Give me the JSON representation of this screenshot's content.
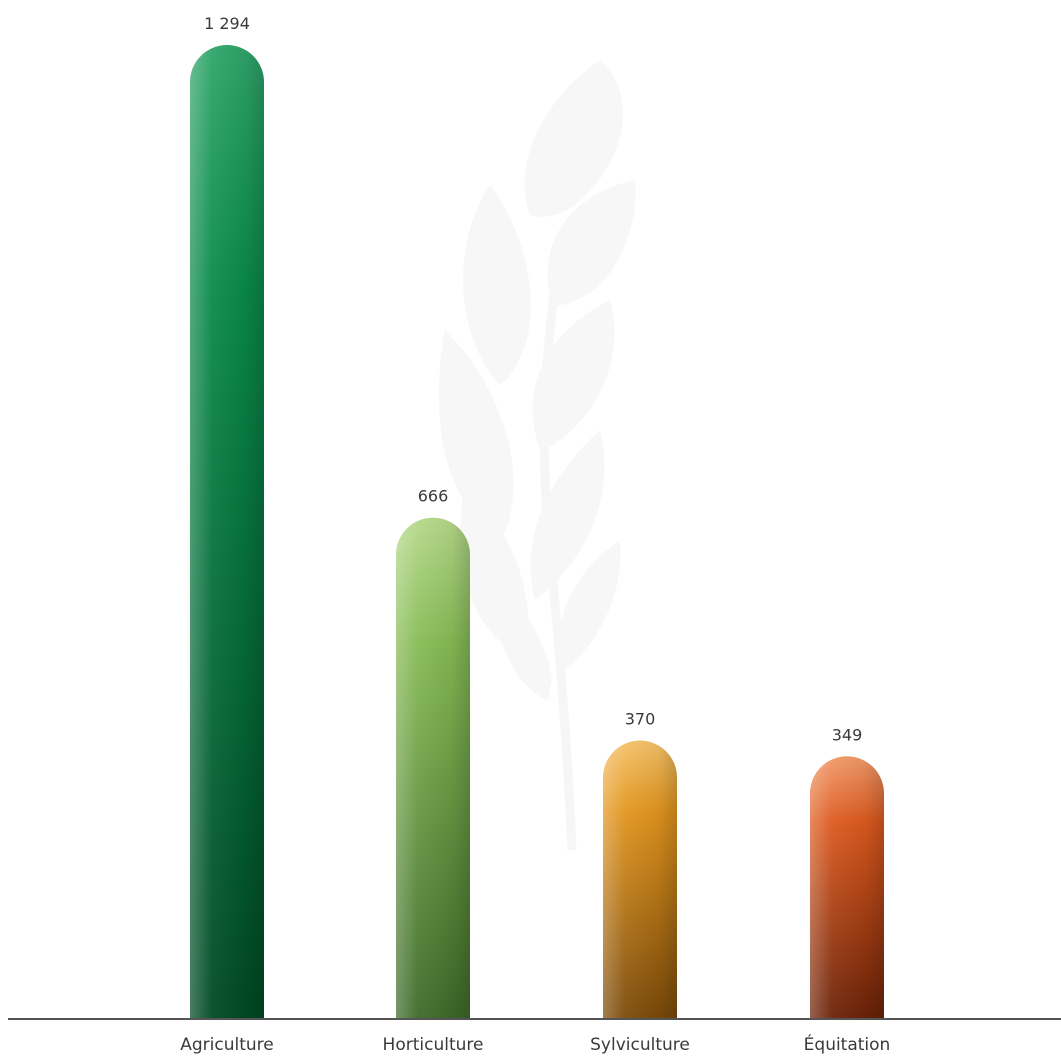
{
  "chart_data": {
    "type": "bar",
    "categories": [
      "Agriculture",
      "Horticulture",
      "Sylviculture",
      "Équitation"
    ],
    "values": [
      1294,
      666,
      370,
      349
    ],
    "value_labels": [
      "1 294",
      "666",
      "370",
      "349"
    ],
    "ylim": [
      0,
      1294
    ],
    "grid": false,
    "legend": "none",
    "colors": [
      {
        "light": "#2fa56a",
        "main": "#0a8a4a",
        "dark": "#004a24"
      },
      {
        "light": "#b5d98a",
        "main": "#86bb55",
        "dark": "#3e6a2a"
      },
      {
        "light": "#f4c26a",
        "main": "#e3961f",
        "dark": "#7a4a0a"
      },
      {
        "light": "#f19a6a",
        "main": "#dd5a1f",
        "dark": "#6a2208"
      }
    ],
    "axis_color": "#555555",
    "watermark": "wheat-icon"
  }
}
